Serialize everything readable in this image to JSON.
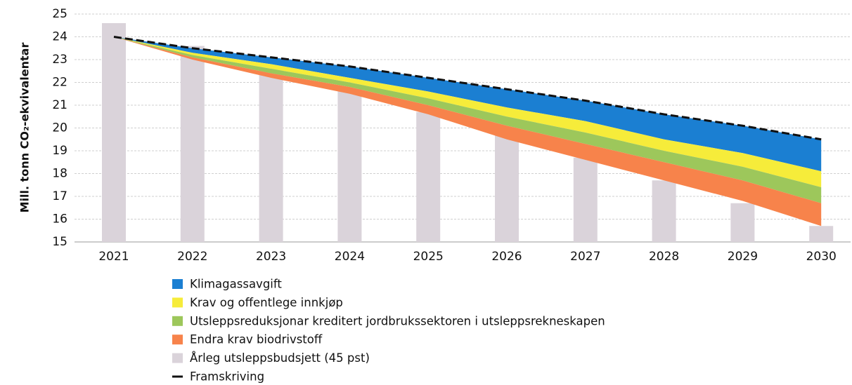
{
  "chart_data": {
    "type": "bar",
    "y_label": "Mill. tonn CO₂-ekvivalentar",
    "categories": [
      "2021",
      "2022",
      "2023",
      "2024",
      "2025",
      "2026",
      "2027",
      "2028",
      "2029",
      "2030"
    ],
    "ylim": [
      15,
      25
    ],
    "yticks": [
      15,
      16,
      17,
      18,
      19,
      20,
      21,
      22,
      23,
      24,
      25
    ],
    "grid": true,
    "legend": "bottom",
    "series": [
      {
        "name": "Klimagassavgift",
        "type": "area",
        "color": "#1b7fd2",
        "values": [
          0,
          0.2,
          0.3,
          0.5,
          0.6,
          0.8,
          0.9,
          1.1,
          1.2,
          1.4
        ]
      },
      {
        "name": "Krav og offentlege innkjøp",
        "type": "area",
        "color": "#f6ec3a",
        "values": [
          0,
          0.1,
          0.2,
          0.2,
          0.3,
          0.4,
          0.5,
          0.5,
          0.6,
          0.7
        ]
      },
      {
        "name": "Utsleppsreduksjonar kreditert jordbrukssektoren i utsleppsrekneskapen",
        "type": "area",
        "color": "#9dc75b",
        "values": [
          0,
          0.1,
          0.2,
          0.2,
          0.3,
          0.4,
          0.5,
          0.5,
          0.6,
          0.7
        ]
      },
      {
        "name": "Endra krav biodrivstoff",
        "type": "area",
        "color": "#f7834b",
        "values": [
          0,
          0.1,
          0.2,
          0.3,
          0.4,
          0.6,
          0.7,
          0.8,
          0.9,
          1.0
        ]
      },
      {
        "name": "Årleg utsleppsbudsjett (45 pst)",
        "type": "bar",
        "color": "#dad3da",
        "values": [
          24.6,
          23.6,
          22.6,
          21.7,
          20.7,
          19.7,
          18.7,
          17.7,
          16.7,
          15.7
        ]
      },
      {
        "name": "Framskriving",
        "type": "line",
        "color": "#111111",
        "values": [
          24.0,
          23.5,
          23.1,
          22.7,
          22.2,
          21.7,
          21.2,
          20.6,
          20.1,
          19.5
        ]
      }
    ]
  }
}
